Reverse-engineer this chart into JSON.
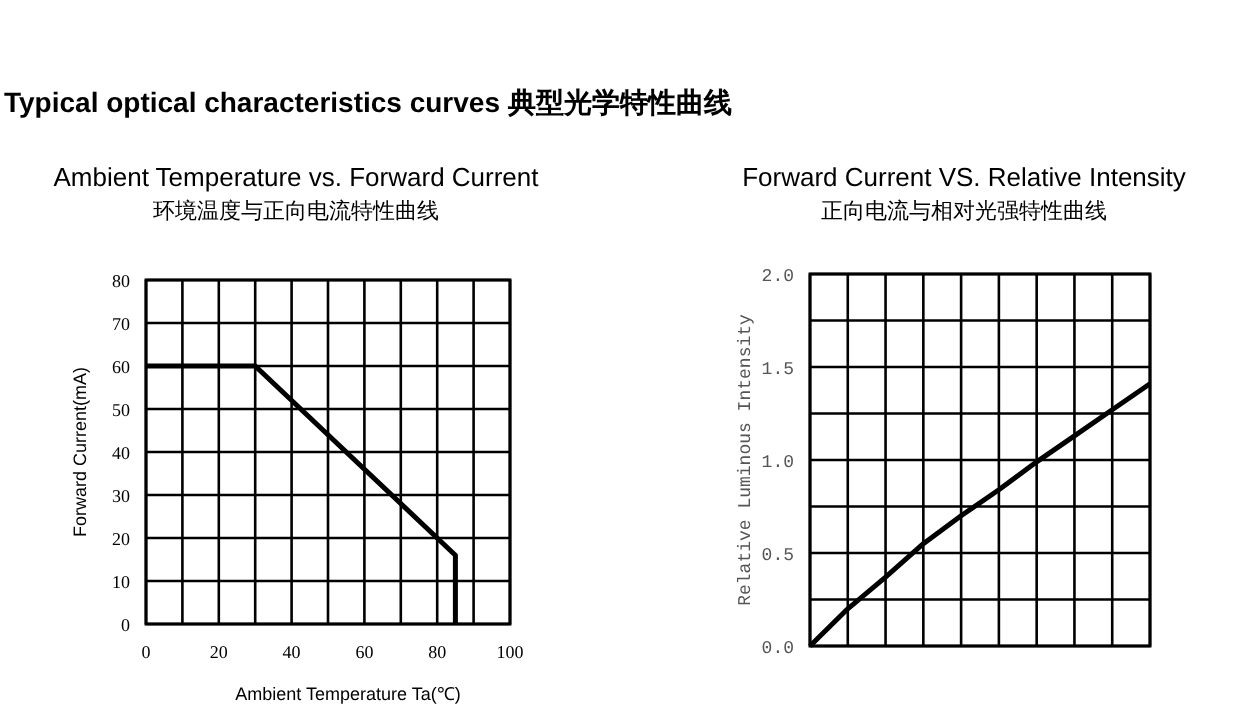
{
  "chart_data": [
    {
      "type": "line",
      "title": "Ambient Temperature vs. Forward Current",
      "subtitle": "环境温度与正向电流特性曲线",
      "xlabel": "Ambient Temperature    Ta(℃)",
      "ylabel": "Forward Current(mA)",
      "annotations": [
        "Typical optical characteristics curves   典型光学特性曲线"
      ],
      "x": [
        0,
        30,
        85,
        85
      ],
      "series": [
        {
          "color": "#000000",
          "values": [
            60,
            60,
            16,
            0
          ]
        }
      ],
      "xlim": [
        0,
        100
      ],
      "xticks": [
        0,
        {
          "value": 10,
          "label": null
        },
        20,
        {
          "value": 30,
          "label": null
        },
        40,
        {
          "value": 50,
          "label": null
        },
        60,
        {
          "value": 70,
          "label": null
        },
        80,
        {
          "value": 90,
          "label": null
        },
        100
      ],
      "ylim": [
        0,
        80
      ],
      "yticks": [
        0,
        10,
        20,
        30,
        40,
        50,
        60,
        70,
        80
      ],
      "grid": true,
      "marker": "none",
      "line_style": "solid"
    },
    {
      "type": "line",
      "title": "Forward Current VS. Relative Intensity",
      "subtitle": "正向电流与相对光强特性曲线",
      "ylabel": "Relative Luminous Intensity",
      "categories": [
        null,
        null,
        null,
        null,
        null,
        null,
        null,
        null,
        null,
        null
      ],
      "series": [
        {
          "color": "#000000",
          "values": [
            0.0,
            0.2,
            0.37,
            0.55,
            0.7,
            0.84,
            0.99,
            1.13,
            1.27,
            1.41
          ]
        }
      ],
      "ylim": [
        0,
        2
      ],
      "yticks": [
        {
          "value": 0,
          "label": "0.0"
        },
        {
          "value": 0.25,
          "label": null
        },
        {
          "value": 0.5,
          "label": "0.5"
        },
        {
          "value": 0.75,
          "label": null
        },
        {
          "value": 1,
          "label": "1.0"
        },
        {
          "value": 1.25,
          "label": null
        },
        {
          "value": 1.5,
          "label": "1.5"
        },
        {
          "value": 1.75,
          "label": null
        },
        {
          "value": 2,
          "label": "2.0"
        }
      ],
      "grid": true,
      "tick_labels": "y",
      "marker": "none",
      "line_style": "solid"
    }
  ]
}
